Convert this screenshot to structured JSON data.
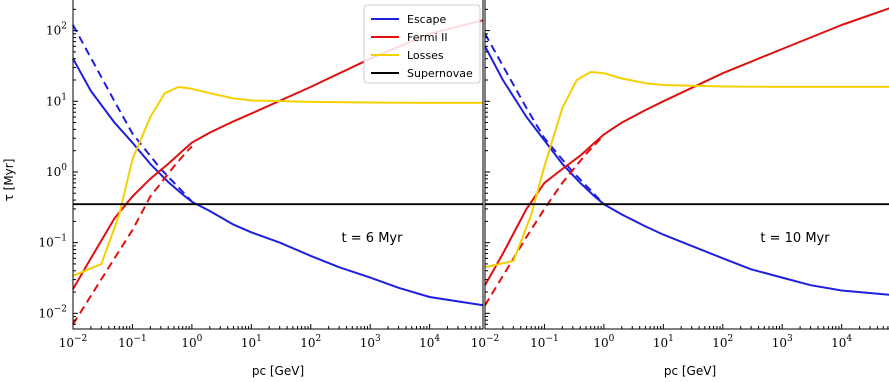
{
  "chart_data": {
    "type": "line",
    "yscale": "log",
    "xscale": "log",
    "ylabel": "τ [Myr]",
    "legend": {
      "placement": "top-right of left panel",
      "entries": [
        {
          "label": "Escape",
          "color": "#1f1fe0"
        },
        {
          "label": "Fermi II",
          "color": "#e01010"
        },
        {
          "label": "Losses",
          "color": "#f5d000"
        },
        {
          "label": "Supernovae",
          "color": "#000000"
        }
      ]
    },
    "y_ticks": [
      {
        "value": 0.01,
        "label": "10^-2"
      },
      {
        "value": 0.1,
        "label": "10^-1"
      },
      {
        "value": 1,
        "label": "10^0"
      },
      {
        "value": 10,
        "label": "10^1"
      },
      {
        "value": 100,
        "label": "10^2"
      }
    ],
    "panels": [
      {
        "annotation": "t = 6 Myr",
        "xlabel": "pc [GeV]",
        "xlim": [
          0.01,
          79000
        ],
        "ylim": [
          0.006,
          280
        ],
        "x_ticks": [
          {
            "value": 0.01,
            "label": "10^-2"
          },
          {
            "value": 0.1,
            "label": "10^-1"
          },
          {
            "value": 1,
            "label": "10^0"
          },
          {
            "value": 10,
            "label": "10^1"
          },
          {
            "value": 100,
            "label": "10^2"
          },
          {
            "value": 1000,
            "label": "10^3"
          },
          {
            "value": 10000,
            "label": "10^4"
          }
        ],
        "series": [
          {
            "name": "Escape",
            "style": "solid",
            "color": "#1f1fe0",
            "points": [
              [
                0.01,
                40
              ],
              [
                0.02,
                14
              ],
              [
                0.05,
                5
              ],
              [
                0.1,
                2.6
              ],
              [
                0.2,
                1.3
              ],
              [
                0.4,
                0.72
              ],
              [
                0.7,
                0.48
              ],
              [
                1,
                0.38
              ],
              [
                2,
                0.28
              ],
              [
                5,
                0.18
              ],
              [
                10,
                0.14
              ],
              [
                30,
                0.1
              ],
              [
                100,
                0.065
              ],
              [
                300,
                0.045
              ],
              [
                1000,
                0.032
              ],
              [
                3000,
                0.023
              ],
              [
                10000,
                0.017
              ],
              [
                79000,
                0.013
              ]
            ]
          },
          {
            "name": "Escape",
            "style": "dashed",
            "color": "#1f1fe0",
            "points": [
              [
                0.01,
                120
              ],
              [
                0.05,
                10
              ],
              [
                0.1,
                3.5
              ],
              [
                0.3,
                1.1
              ],
              [
                0.6,
                0.6
              ],
              [
                1,
                0.38
              ]
            ]
          },
          {
            "name": "Fermi II",
            "style": "solid",
            "color": "#e01010",
            "points": [
              [
                0.01,
                0.022
              ],
              [
                0.02,
                0.06
              ],
              [
                0.05,
                0.22
              ],
              [
                0.1,
                0.45
              ],
              [
                0.2,
                0.8
              ],
              [
                0.4,
                1.3
              ],
              [
                0.7,
                2.0
              ],
              [
                1,
                2.6
              ],
              [
                2,
                3.6
              ],
              [
                5,
                5.2
              ],
              [
                10,
                6.7
              ],
              [
                100,
                16
              ],
              [
                1000,
                40
              ],
              [
                10000,
                90
              ],
              [
                79000,
                140
              ]
            ]
          },
          {
            "name": "Fermi II",
            "style": "dashed",
            "color": "#e01010",
            "points": [
              [
                0.01,
                0.007
              ],
              [
                0.05,
                0.06
              ],
              [
                0.1,
                0.15
              ],
              [
                0.2,
                0.45
              ],
              [
                0.5,
                1.2
              ],
              [
                0.8,
                1.9
              ],
              [
                1,
                2.3
              ]
            ]
          },
          {
            "name": "Losses",
            "style": "solid",
            "color": "#f5d000",
            "points": [
              [
                0.01,
                0.034
              ],
              [
                0.03,
                0.05
              ],
              [
                0.06,
                0.25
              ],
              [
                0.1,
                1.5
              ],
              [
                0.2,
                6
              ],
              [
                0.35,
                13
              ],
              [
                0.6,
                16
              ],
              [
                1,
                15
              ],
              [
                2,
                13
              ],
              [
                5,
                11
              ],
              [
                10,
                10.3
              ],
              [
                100,
                9.8
              ],
              [
                1000,
                9.6
              ],
              [
                10000,
                9.5
              ],
              [
                79000,
                9.5
              ]
            ]
          },
          {
            "name": "Supernovae",
            "style": "solid",
            "color": "#000000",
            "points": [
              [
                0.01,
                0.35
              ],
              [
                79000,
                0.35
              ]
            ]
          }
        ]
      },
      {
        "annotation": "t = 10 Myr",
        "xlabel": "pc [GeV]",
        "xlim": [
          0.01,
          79000
        ],
        "ylim": [
          0.006,
          280
        ],
        "x_ticks": [
          {
            "value": 0.01,
            "label": "10^-2"
          },
          {
            "value": 0.1,
            "label": "10^-1"
          },
          {
            "value": 1,
            "label": "10^0"
          },
          {
            "value": 10,
            "label": "10^1"
          },
          {
            "value": 100,
            "label": "10^2"
          },
          {
            "value": 1000,
            "label": "10^3"
          },
          {
            "value": 10000,
            "label": "10^4"
          }
        ],
        "series": [
          {
            "name": "Escape",
            "style": "solid",
            "color": "#1f1fe0",
            "points": [
              [
                0.01,
                60
              ],
              [
                0.02,
                20
              ],
              [
                0.05,
                6
              ],
              [
                0.1,
                2.8
              ],
              [
                0.2,
                1.3
              ],
              [
                0.4,
                0.7
              ],
              [
                0.7,
                0.45
              ],
              [
                1,
                0.35
              ],
              [
                2,
                0.25
              ],
              [
                5,
                0.17
              ],
              [
                10,
                0.13
              ],
              [
                30,
                0.09
              ],
              [
                100,
                0.06
              ],
              [
                300,
                0.042
              ],
              [
                1000,
                0.032
              ],
              [
                3000,
                0.025
              ],
              [
                10000,
                0.021
              ],
              [
                79000,
                0.018
              ]
            ]
          },
          {
            "name": "Escape",
            "style": "dashed",
            "color": "#1f1fe0",
            "points": [
              [
                0.01,
                90
              ],
              [
                0.05,
                8
              ],
              [
                0.1,
                3
              ],
              [
                0.3,
                1.0
              ],
              [
                0.6,
                0.55
              ],
              [
                1,
                0.35
              ]
            ]
          },
          {
            "name": "Fermi II",
            "style": "solid",
            "color": "#e01010",
            "points": [
              [
                0.01,
                0.025
              ],
              [
                0.02,
                0.07
              ],
              [
                0.05,
                0.3
              ],
              [
                0.1,
                0.7
              ],
              [
                0.2,
                1.1
              ],
              [
                0.4,
                1.7
              ],
              [
                0.7,
                2.6
              ],
              [
                1,
                3.4
              ],
              [
                2,
                5
              ],
              [
                5,
                7.5
              ],
              [
                10,
                10
              ],
              [
                100,
                25
              ],
              [
                1000,
                55
              ],
              [
                10000,
                120
              ],
              [
                79000,
                220
              ]
            ]
          },
          {
            "name": "Fermi II",
            "style": "dashed",
            "color": "#e01010",
            "points": [
              [
                0.01,
                0.013
              ],
              [
                0.05,
                0.12
              ],
              [
                0.1,
                0.3
              ],
              [
                0.2,
                0.7
              ],
              [
                0.5,
                1.8
              ],
              [
                1,
                3.3
              ]
            ]
          },
          {
            "name": "Losses",
            "style": "solid",
            "color": "#f5d000",
            "points": [
              [
                0.01,
                0.045
              ],
              [
                0.03,
                0.055
              ],
              [
                0.06,
                0.25
              ],
              [
                0.1,
                1.2
              ],
              [
                0.2,
                8
              ],
              [
                0.35,
                20
              ],
              [
                0.6,
                26
              ],
              [
                1,
                25
              ],
              [
                2,
                21
              ],
              [
                5,
                18
              ],
              [
                10,
                17
              ],
              [
                100,
                16.2
              ],
              [
                1000,
                16
              ],
              [
                10000,
                16
              ],
              [
                79000,
                16
              ]
            ]
          },
          {
            "name": "Supernovae",
            "style": "solid",
            "color": "#000000",
            "points": [
              [
                0.01,
                0.35
              ],
              [
                79000,
                0.35
              ]
            ]
          }
        ]
      }
    ]
  }
}
